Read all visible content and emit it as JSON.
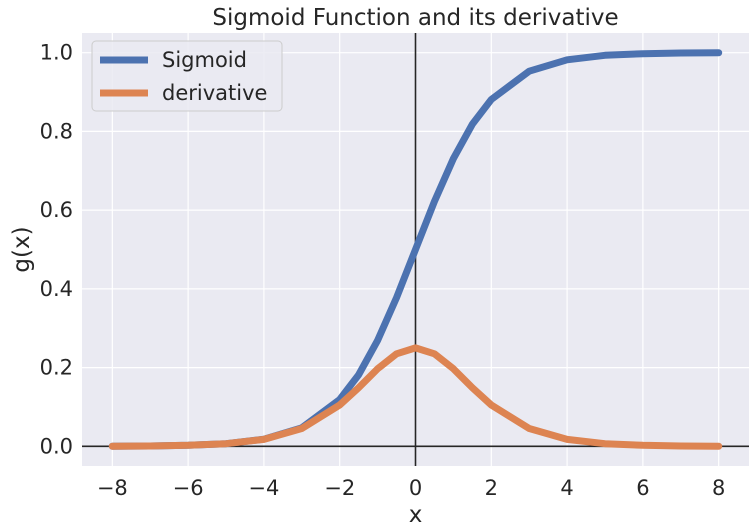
{
  "chart_data": {
    "type": "line",
    "title": "Sigmoid Function and its derivative",
    "xlabel": "x",
    "ylabel": "g(x)",
    "xlim": [
      -8.8,
      8.8
    ],
    "ylim": [
      -0.05,
      1.05
    ],
    "x_ticks": [
      -8,
      -6,
      -4,
      -2,
      0,
      2,
      4,
      6,
      8
    ],
    "x_tick_labels": [
      "−8",
      "−6",
      "−4",
      "−2",
      "0",
      "2",
      "4",
      "6",
      "8"
    ],
    "y_ticks": [
      0.0,
      0.2,
      0.4,
      0.6,
      0.8,
      1.0
    ],
    "y_tick_labels": [
      "0.0",
      "0.2",
      "0.4",
      "0.6",
      "0.8",
      "1.0"
    ],
    "grid": true,
    "legend_position": "top-left",
    "x": [
      -8,
      -7,
      -6,
      -5,
      -4,
      -3,
      -2,
      -1.5,
      -1,
      -0.5,
      0,
      0.5,
      1,
      1.5,
      2,
      3,
      4,
      5,
      6,
      7,
      8
    ],
    "series": [
      {
        "name": "Sigmoid",
        "color": "#4c72b0",
        "values": [
          0.0003,
          0.0009,
          0.0025,
          0.0067,
          0.018,
          0.047,
          0.119,
          0.182,
          0.269,
          0.378,
          0.5,
          0.622,
          0.731,
          0.818,
          0.881,
          0.953,
          0.982,
          0.9933,
          0.9975,
          0.9991,
          0.9997
        ]
      },
      {
        "name": "derivative",
        "color": "#dd8452",
        "values": [
          0.0003,
          0.0009,
          0.0025,
          0.0066,
          0.0177,
          0.0452,
          0.105,
          0.149,
          0.197,
          0.235,
          0.25,
          0.235,
          0.197,
          0.149,
          0.105,
          0.0452,
          0.0177,
          0.0066,
          0.0025,
          0.0009,
          0.0003
        ]
      }
    ],
    "reference_lines": {
      "x": 0,
      "y": 0,
      "color": "#262626"
    },
    "colors": {
      "plot_background": "#eaeaf2",
      "grid": "#ffffff",
      "text": "#262626"
    }
  }
}
